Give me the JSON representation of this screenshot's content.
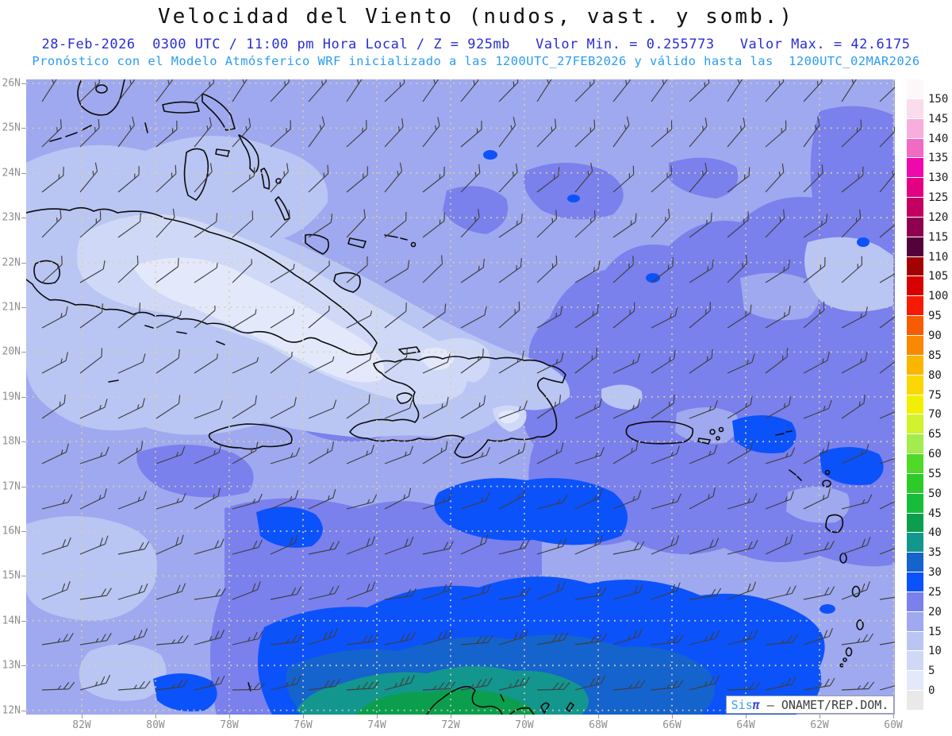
{
  "header": {
    "title": "Velocidad del Viento (nudos, vast. y somb.)",
    "forecast_line": "28-Feb-2026  0300 UTC / 11:00 pm Hora Local / Z = 925mb   Valor Min. = 0.255773   Valor Max. = 42.6175",
    "model_line": "Pronóstico con el Modelo Atmósferico WRF inicializado a las 1200UTC_27FEB2026 y válido hasta las  1200UTC_02MAR2026",
    "forecast_line_color": "#2a2ed2",
    "model_line_color": "#2b9df0"
  },
  "axes": {
    "lat_labels": [
      "26N",
      "25N",
      "24N",
      "23N",
      "22N",
      "21N",
      "20N",
      "19N",
      "18N",
      "17N",
      "16N",
      "15N",
      "14N",
      "13N",
      "12N"
    ],
    "lon_labels": [
      "82W",
      "80W",
      "78W",
      "76W",
      "74W",
      "72W",
      "70W",
      "68W",
      "66W",
      "64W",
      "62W",
      "60W"
    ]
  },
  "colorbar": {
    "tick_labels": [
      "150",
      "145",
      "140",
      "135",
      "130",
      "125",
      "120",
      "115",
      "110",
      "105",
      "100",
      "95",
      "90",
      "85",
      "80",
      "75",
      "70",
      "65",
      "60",
      "55",
      "50",
      "45",
      "40",
      "35",
      "30",
      "25",
      "20",
      "15",
      "10",
      "5",
      "0"
    ],
    "cell_colors_top_to_bottom": [
      "#fdf7fa",
      "#fbdcec",
      "#f8addc",
      "#f16ac4",
      "#ee09ac",
      "#e30082",
      "#c10061",
      "#8e0150",
      "#55013a",
      "#a40202",
      "#d60202",
      "#f51b02",
      "#f85c02",
      "#fa8802",
      "#fbb602",
      "#fbd602",
      "#f2ef02",
      "#d2f22d",
      "#a2ec4e",
      "#50d926",
      "#2eca2a",
      "#17bd3a",
      "#0b9e4e",
      "#13968e",
      "#1563cd",
      "#0b52fa",
      "#7a80ec",
      "#9fa9ef",
      "#b9c5f3",
      "#cfd9f7",
      "#e3e9fb",
      "#e9e9e9"
    ]
  },
  "branding": {
    "product": "Sis",
    "pi": "π",
    "rest": " – ONAMET/REP.DOM."
  }
}
